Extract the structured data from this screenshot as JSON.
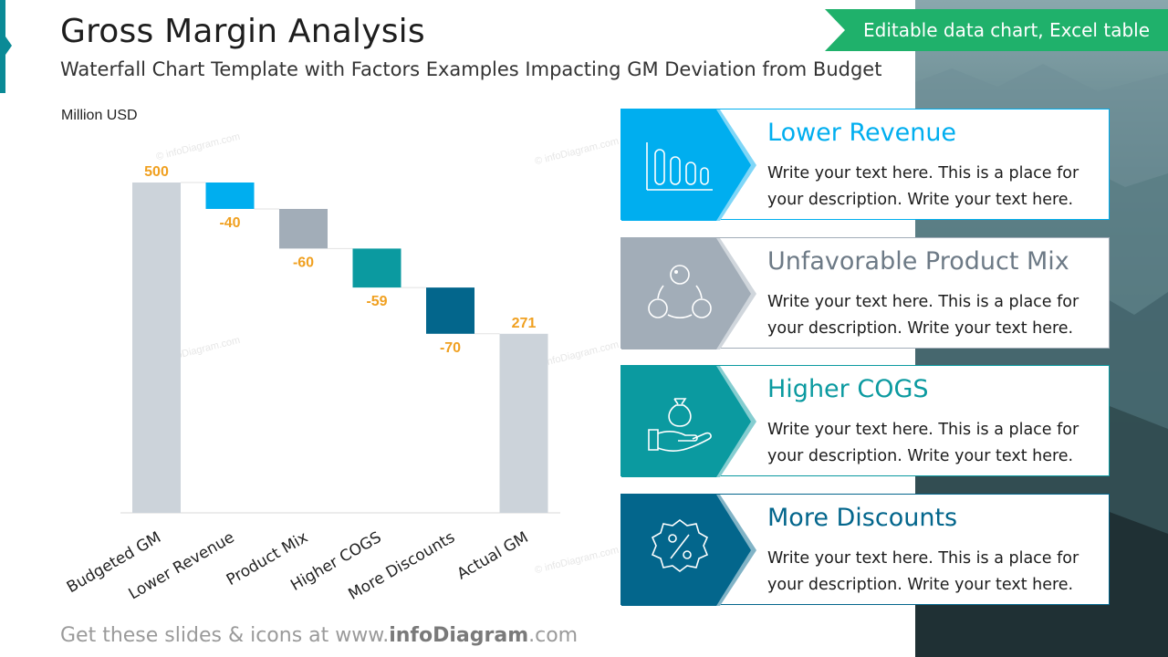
{
  "header": {
    "title": "Gross Margin Analysis",
    "subtitle": "Waterfall Chart Template with Factors Examples Impacting GM Deviation from Budget",
    "unit": "Million USD",
    "badge": "Editable data chart, Excel table"
  },
  "chart_data": {
    "type": "bar",
    "subtype": "waterfall",
    "categories": [
      "Budgeted GM",
      "Lower Revenue",
      "Product Mix",
      "Higher COGS",
      "More Discounts",
      "Actual GM"
    ],
    "values": [
      500,
      -40,
      -60,
      -59,
      -70,
      271
    ],
    "value_labels": [
      "500",
      "-40",
      "-60",
      "-59",
      "-70",
      "271"
    ],
    "kinds": [
      "total",
      "delta",
      "delta",
      "delta",
      "delta",
      "total"
    ],
    "colors": [
      "#ccd3da",
      "#00aeef",
      "#a2adb8",
      "#0b9aa0",
      "#03668c",
      "#ccd3da"
    ],
    "ylabel": "Million USD",
    "ylim": [
      0,
      500
    ],
    "grid": false,
    "legend": "none"
  },
  "cards": [
    {
      "title": "Lower Revenue",
      "text": "Write your text here. This is a place for your description. Write your text here.",
      "color": "#00aeef",
      "light": "#7fd6f7",
      "icon": "bar-chart-icon"
    },
    {
      "title": "Unfavorable Product Mix",
      "text": "Write your text here. This is a place for your description. Write your text here.",
      "color": "#a2adb8",
      "light": "#d0d6dc",
      "icon": "molecule-icon"
    },
    {
      "title": "Higher COGS",
      "text": "Write your text here. This is a place for your description. Write your text here.",
      "color": "#0b9aa0",
      "light": "#85cdd0",
      "icon": "money-hand-icon"
    },
    {
      "title": "More Discounts",
      "text": "Write your text here. This is a place for your description. Write your text here.",
      "color": "#03668c",
      "light": "#81b3c6",
      "icon": "percent-badge-icon"
    }
  ],
  "footer": {
    "prefix": "Get these slides & icons at www.",
    "brand": "infoDiagram",
    "suffix": ".com"
  },
  "watermark": "© infoDiagram.com",
  "colors": {
    "accent": "#0a8a96",
    "badge": "#1fb16b",
    "label": "#f0a020"
  }
}
